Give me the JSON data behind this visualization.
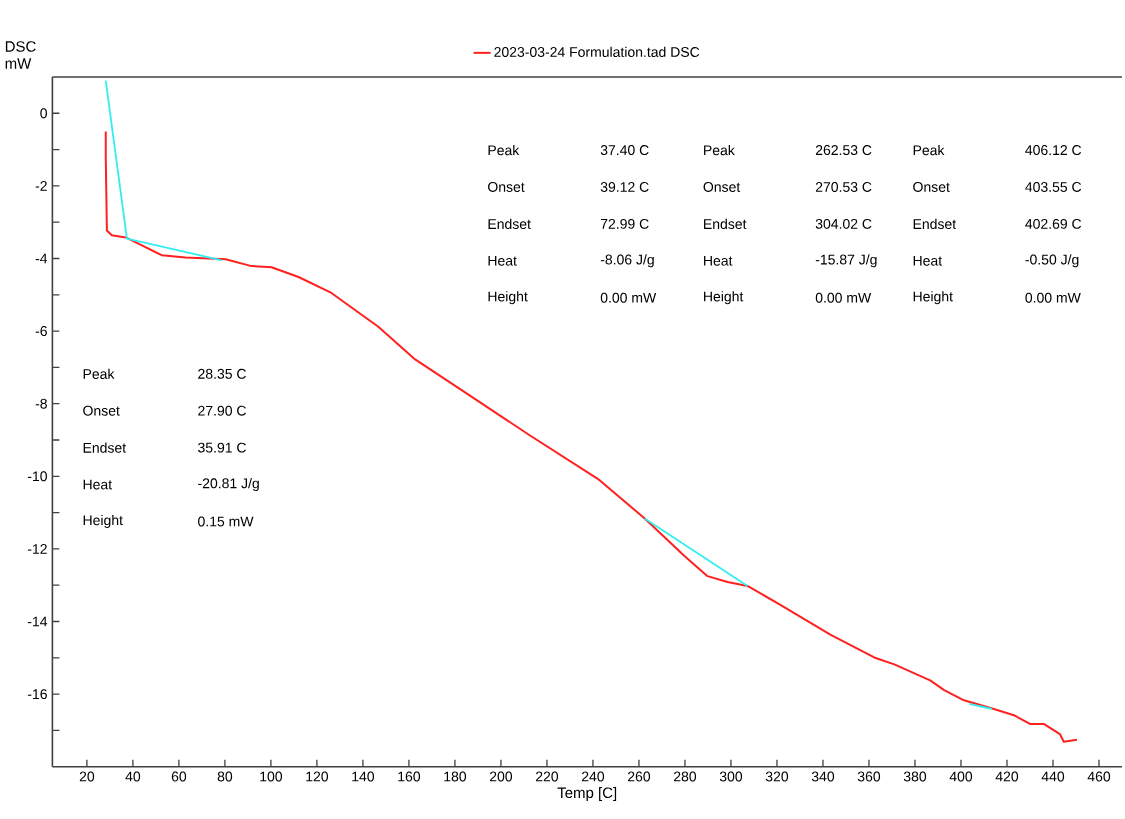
{
  "chart_data": {
    "type": "line",
    "xlabel": "Temp  [C]",
    "ylabel": "DSC mW",
    "xlim": [
      5,
      470
    ],
    "ylim": [
      -18,
      1
    ],
    "xticks": [
      20,
      40,
      60,
      80,
      100,
      120,
      140,
      160,
      180,
      200,
      220,
      240,
      260,
      280,
      300,
      320,
      340,
      360,
      380,
      400,
      420,
      440,
      460
    ],
    "yticks": [
      0,
      {
        "value": -1,
        "label": null
      },
      -2,
      {
        "value": -3,
        "label": null
      },
      -4,
      {
        "value": -5,
        "label": null
      },
      -6,
      {
        "value": -7,
        "label": null
      },
      -8,
      {
        "value": -9,
        "label": null
      },
      -10,
      {
        "value": -11,
        "label": null
      },
      -12,
      {
        "value": -13,
        "label": null
      },
      -14,
      {
        "value": -15,
        "label": null
      },
      -16,
      {
        "value": -17,
        "label": null
      }
    ],
    "legend": "top",
    "marker": "none",
    "line_style": "solid",
    "annotations": [
      "Peak",
      "37.40 C",
      "Onset",
      "39.12 C",
      "Endset",
      "72.99 C",
      "Heat",
      "-8.06 J/g",
      "Height",
      "0.00 mW",
      "Peak",
      "262.53 C",
      "Onset",
      "270.53 C",
      "Endset",
      "304.02 C",
      "Heat",
      "-15.87 J/g",
      "Height",
      "0.00 mW",
      "Peak",
      "406.12 C",
      "Onset",
      "403.55 C",
      "Endset",
      "402.69 C",
      "Heat",
      "-0.50 J/g",
      "Height",
      "0.00 mW",
      "Peak",
      "28.35 C",
      "Onset",
      "27.90 C",
      "Endset",
      "35.91 C",
      "Heat",
      "-20.81 J/g",
      "Height",
      "0.15 mW"
    ],
    "series": [
      {
        "name": "2023-03-24 Formulation.tad DSC",
        "color": "#ff2020",
        "x": [
          28.2,
          28.2,
          28.7,
          30.8,
          36.9,
          43.9,
          52.5,
          62.9,
          80.3,
          91.6,
          100.3,
          112,
          126.3,
          146.7,
          162.7,
          184.4,
          213,
          242.1,
          262.5,
          279.9,
          289.8,
          298.5,
          307.2,
          321.5,
          343.2,
          362.3,
          371,
          386.6,
          392.7,
          401.3,
          414.3,
          423,
          430,
          436,
          443,
          444.7,
          450.4
        ],
        "values": [
          -0.5,
          -1.23,
          -3.23,
          -3.36,
          -3.42,
          -3.64,
          -3.91,
          -3.97,
          -4.02,
          -4.21,
          -4.24,
          -4.51,
          -4.95,
          -5.88,
          -6.78,
          -7.69,
          -8.89,
          -10.07,
          -11.16,
          -12.2,
          -12.75,
          -12.91,
          -13.02,
          -13.54,
          -14.36,
          -14.99,
          -15.18,
          -15.62,
          -15.89,
          -16.17,
          -16.41,
          -16.58,
          -16.82,
          -16.82,
          -17.1,
          -17.31,
          -17.26
        ]
      },
      {
        "color": "#33eef0",
        "x": [
          28.2,
          37.4,
          78.6
        ],
        "values": [
          0.9,
          -3.45,
          -4.05
        ]
      },
      {
        "color": "#33eef0",
        "x": [
          262.5,
          307.2
        ],
        "values": [
          -11.16,
          -13.02
        ]
      },
      {
        "color": "#33eef0",
        "x": [
          403.6,
          413.5
        ],
        "values": [
          -16.27,
          -16.41
        ]
      }
    ]
  }
}
